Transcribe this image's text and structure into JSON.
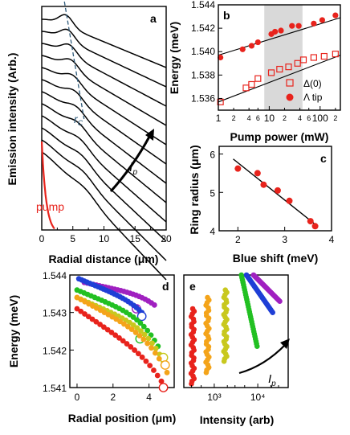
{
  "chart_data": [
    {
      "panel": "a",
      "type": "line",
      "xlabel": "Radial distance (μm)",
      "ylabel": "Emission intensity (Arb.)",
      "xlim": [
        0,
        20
      ],
      "xticks": [
        "0",
        "5",
        "10",
        "15",
        "20"
      ],
      "annotations": {
        "rc": "r",
        "rc_sub": "C",
        "ip": "I",
        "ip_sub": "p"
      },
      "pump_label": "pump",
      "colors": {
        "curves": "#000000",
        "pump": "#e8231c",
        "rc_line": "#2e5a7a"
      },
      "curve_count": 12
    },
    {
      "panel": "b",
      "type": "scatter",
      "xlabel": "Pump power (mW)",
      "ylabel": "Energy (meV)",
      "xscale": "log",
      "xlim": [
        1,
        250
      ],
      "ylim": [
        1.535,
        1.544
      ],
      "xticks": [
        "1",
        "10",
        "100"
      ],
      "yticks": [
        "1.536",
        "1.538",
        "1.540",
        "1.542",
        "1.544"
      ],
      "shaded_region_x": [
        8,
        45
      ],
      "legend": [
        "Δ(0)",
        "Λ tip"
      ],
      "series": [
        {
          "name": "Δ(0)",
          "marker": "open-square",
          "color": "#e8231c",
          "x": [
            1.1,
            3.5,
            4.5,
            6,
            11,
            16,
            24,
            36,
            47,
            75,
            120,
            200
          ],
          "y": [
            1.5357,
            1.5369,
            1.5372,
            1.5377,
            1.5382,
            1.5385,
            1.5387,
            1.539,
            1.5393,
            1.5395,
            1.5396,
            1.5398
          ]
        },
        {
          "name": "Λ tip",
          "marker": "filled-circle",
          "color": "#e8231c",
          "x": [
            1.1,
            3,
            4.5,
            6,
            11,
            13,
            17,
            28,
            38,
            75,
            110,
            200
          ],
          "y": [
            1.5395,
            1.5402,
            1.5405,
            1.5408,
            1.5415,
            1.5417,
            1.5418,
            1.5422,
            1.5422,
            1.5424,
            1.5427,
            1.5431
          ]
        }
      ],
      "fit_lines": [
        {
          "x": [
            1,
            250
          ],
          "y": [
            1.5397,
            1.5429
          ]
        },
        {
          "x": [
            1,
            250
          ],
          "y": [
            1.5357,
            1.5397
          ]
        }
      ]
    },
    {
      "panel": "c",
      "type": "scatter",
      "xlabel": "Blue shift (meV)",
      "ylabel": "Ring radius (μm)",
      "xlim": [
        1.6,
        4
      ],
      "ylim": [
        4,
        6.2
      ],
      "xticks": [
        "2",
        "3",
        "4"
      ],
      "yticks": [
        "4",
        "5",
        "6"
      ],
      "series": [
        {
          "color": "#e8231c",
          "x": [
            2.0,
            2.42,
            2.55,
            2.85,
            3.1,
            3.55,
            3.65
          ],
          "y": [
            5.62,
            5.5,
            5.2,
            5.05,
            4.78,
            4.25,
            4.12
          ]
        }
      ],
      "fit_line": {
        "x": [
          1.9,
          3.7
        ],
        "y": [
          5.87,
          4.12
        ]
      }
    },
    {
      "panel": "d",
      "type": "scatter",
      "xlabel": "Radial position (μm)",
      "ylabel": "Energy (meV)",
      "xlim": [
        -0.4,
        5.4
      ],
      "ylim": [
        1.541,
        1.544
      ],
      "xticks": [
        "0",
        "2",
        "4"
      ],
      "yticks": [
        "1.541",
        "1.542",
        "1.543",
        "1.544"
      ],
      "series": [
        {
          "color": "#a020c0",
          "x0": 0.4,
          "x1": 4.3,
          "y0": 1.5438,
          "y1": 1.5434,
          "y_end": 1.5432,
          "open_marker": [
            3.3,
            1.5431
          ]
        },
        {
          "color": "#1f3fd6",
          "x0": 0.1,
          "x1": 3.6,
          "y0": 1.5439,
          "y1": 1.5432,
          "y_end": 1.543,
          "open_marker": [
            3.6,
            1.5429
          ]
        },
        {
          "color": "#22c022",
          "x0": 0.0,
          "x1": 4.5,
          "y0": 1.5436,
          "y1": 1.5427,
          "y_end": 1.5421,
          "open_marker": [
            3.5,
            1.5423
          ]
        },
        {
          "color": "#c8c81e",
          "x0": 0.0,
          "x1": 4.8,
          "y0": 1.5434,
          "y1": 1.5424,
          "y_end": 1.5417,
          "open_marker": [
            4.8,
            1.5418
          ]
        },
        {
          "color": "#f4a41a",
          "x0": 0.0,
          "x1": 5.0,
          "y0": 1.5434,
          "y1": 1.5421,
          "y_end": 1.5414,
          "open_marker": [
            4.9,
            1.5416
          ]
        },
        {
          "color": "#e8231c",
          "x0": 0.0,
          "x1": 4.9,
          "y0": 1.5431,
          "y1": 1.5415,
          "y_end": 1.541,
          "open_marker": [
            4.8,
            1.541
          ]
        }
      ]
    },
    {
      "panel": "e",
      "type": "scatter",
      "xlabel": "Intensity (arb)",
      "xscale": "log",
      "xlim": [
        200,
        50000
      ],
      "ylim": [
        1.541,
        1.544
      ],
      "xticks": [
        "10³",
        "10⁴"
      ],
      "annotations": {
        "ip": "I",
        "ip_sub": "p"
      },
      "series": [
        {
          "color": "#e8231c",
          "x_center": 320,
          "y_top": 1.5431,
          "y_bottom": 1.5411
        },
        {
          "color": "#f4a41a",
          "x_center": 700,
          "y_top": 1.5434,
          "y_bottom": 1.5414
        },
        {
          "color": "#c8c81e",
          "x_center": 1800,
          "y_top": 1.5436,
          "y_bottom": 1.5417
        },
        {
          "color": "#22c022",
          "x_center": 4200,
          "y_top": 1.544,
          "y_bottom": 1.5421
        },
        {
          "color": "#1f3fd6",
          "x_center": 5500,
          "y_top": 1.544,
          "y_bottom": 1.543
        },
        {
          "color": "#a020c0",
          "x_center": 8000,
          "y_top": 1.544,
          "y_bottom": 1.5433
        }
      ]
    }
  ],
  "panel_labels": {
    "a": "a",
    "b": "b",
    "c": "c",
    "d": "d",
    "e": "e"
  }
}
